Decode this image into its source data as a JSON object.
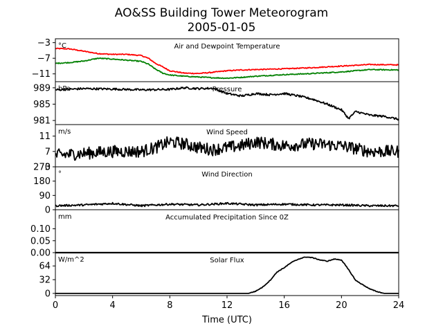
{
  "figure": {
    "title_line1": "AO&SS Building Tower Meteorogram",
    "title_line2": "2005-01-05",
    "xlabel": "Time (UTC)",
    "xticks": [
      "0",
      "4",
      "8",
      "12",
      "16",
      "20",
      "24"
    ]
  },
  "chart_data": [
    {
      "type": "line",
      "title": "Air and Dewpoint Temperature",
      "unit": "°C",
      "xlim": [
        0,
        24
      ],
      "ylim": [
        -13,
        -2
      ],
      "yticks": [
        -3,
        -7,
        -11
      ],
      "ytick_labels": [
        "−3",
        "−7",
        "−11"
      ],
      "series": [
        {
          "color": "#ff0000",
          "x": [
            0,
            1,
            2,
            3,
            4,
            5,
            6,
            6.5,
            7,
            7.5,
            8,
            9,
            10,
            11,
            12,
            13,
            14,
            16,
            18,
            20,
            22,
            24
          ],
          "values": [
            -4.5,
            -4.6,
            -5.2,
            -5.8,
            -6.0,
            -6.0,
            -6.3,
            -7.0,
            -8.3,
            -9.2,
            -10.2,
            -10.8,
            -10.9,
            -10.6,
            -10.2,
            -10.0,
            -9.9,
            -9.7,
            -9.4,
            -9.0,
            -8.6,
            -8.7
          ]
        },
        {
          "color": "#008000",
          "x": [
            0,
            1,
            2,
            3,
            4,
            5,
            6,
            6.5,
            7,
            7.5,
            8,
            9,
            10,
            11,
            12,
            13,
            14,
            16,
            18,
            20,
            22,
            24
          ],
          "values": [
            -8.3,
            -8.1,
            -7.7,
            -7.0,
            -7.2,
            -7.5,
            -7.8,
            -8.5,
            -9.8,
            -10.8,
            -11.3,
            -11.6,
            -11.8,
            -12.0,
            -12.1,
            -11.9,
            -11.6,
            -11.2,
            -10.9,
            -10.5,
            -9.9,
            -10.0
          ]
        }
      ]
    },
    {
      "type": "line",
      "title": "Pressure",
      "unit": "hPa",
      "xlim": [
        0,
        24
      ],
      "ylim": [
        980,
        990.5
      ],
      "yticks": [
        989,
        985,
        981
      ],
      "ytick_labels": [
        "989",
        "985",
        "981"
      ],
      "series": [
        {
          "color": "#000000",
          "x": [
            0,
            2,
            4,
            6,
            8,
            9,
            10,
            11,
            12,
            13,
            14,
            15,
            16,
            17,
            18,
            19,
            20,
            20.5,
            21,
            22,
            23,
            24
          ],
          "values": [
            988.5,
            988.8,
            988.7,
            988.5,
            988.6,
            989.0,
            988.8,
            988.9,
            987.6,
            987.0,
            987.6,
            987.3,
            987.6,
            987.0,
            986.2,
            985.0,
            983.6,
            981.5,
            983.2,
            982.3,
            982.0,
            981.3
          ]
        }
      ]
    },
    {
      "type": "line",
      "title": "Wind Speed",
      "unit": "m/s",
      "xlim": [
        0,
        24
      ],
      "ylim": [
        3,
        14
      ],
      "yticks": [
        11,
        7,
        3
      ],
      "ytick_labels": [
        "11",
        "7",
        "3"
      ],
      "series": [
        {
          "color": "#000000",
          "x": [
            0,
            2,
            4,
            6,
            7,
            8,
            9,
            10,
            11,
            12,
            13,
            14,
            16,
            18,
            20,
            22,
            24
          ],
          "values": [
            6,
            6.5,
            7,
            7,
            8,
            9.5,
            9,
            8,
            7.5,
            8,
            8.5,
            9.5,
            8.5,
            9,
            8.5,
            7,
            7
          ]
        }
      ]
    },
    {
      "type": "line",
      "title": "Wind Direction",
      "unit": "°",
      "xlim": [
        0,
        24
      ],
      "ylim": [
        0,
        270
      ],
      "yticks": [
        270,
        180,
        90,
        0
      ],
      "ytick_labels": [
        "270",
        "180",
        "90",
        "0"
      ],
      "series": [
        {
          "color": "#000000",
          "x": [
            0,
            2,
            4,
            6,
            8,
            10,
            12,
            14,
            16,
            18,
            20,
            22,
            24
          ],
          "values": [
            25,
            30,
            40,
            25,
            35,
            30,
            40,
            30,
            35,
            30,
            30,
            25,
            25
          ]
        }
      ]
    },
    {
      "type": "line",
      "title": "Accumulated Precipitation Since 0Z",
      "unit": "mm",
      "xlim": [
        0,
        24
      ],
      "ylim": [
        0,
        0.18
      ],
      "yticks": [
        0.1,
        0.05,
        0
      ],
      "ytick_labels": [
        "0.10",
        "0.05",
        "0.00"
      ],
      "series": [
        {
          "color": "#000000",
          "x": [
            0,
            24
          ],
          "values": [
            0,
            0
          ]
        }
      ]
    },
    {
      "type": "line",
      "title": "Solar Flux",
      "unit": "W/m^2",
      "xlim": [
        0,
        24
      ],
      "ylim": [
        -5,
        95
      ],
      "yticks": [
        64,
        32,
        0
      ],
      "ytick_labels": [
        "64",
        "32",
        "0"
      ],
      "series": [
        {
          "color": "#000000",
          "x": [
            0,
            13.5,
            14,
            14.5,
            15,
            15.5,
            16,
            16.5,
            17,
            17.5,
            18,
            18.5,
            19,
            19.5,
            20,
            20.5,
            21,
            21.5,
            22,
            22.5,
            23,
            24
          ],
          "values": [
            0,
            0,
            5,
            15,
            30,
            50,
            60,
            72,
            80,
            85,
            83,
            78,
            75,
            80,
            78,
            55,
            30,
            20,
            10,
            4,
            0,
            0
          ]
        }
      ]
    }
  ]
}
